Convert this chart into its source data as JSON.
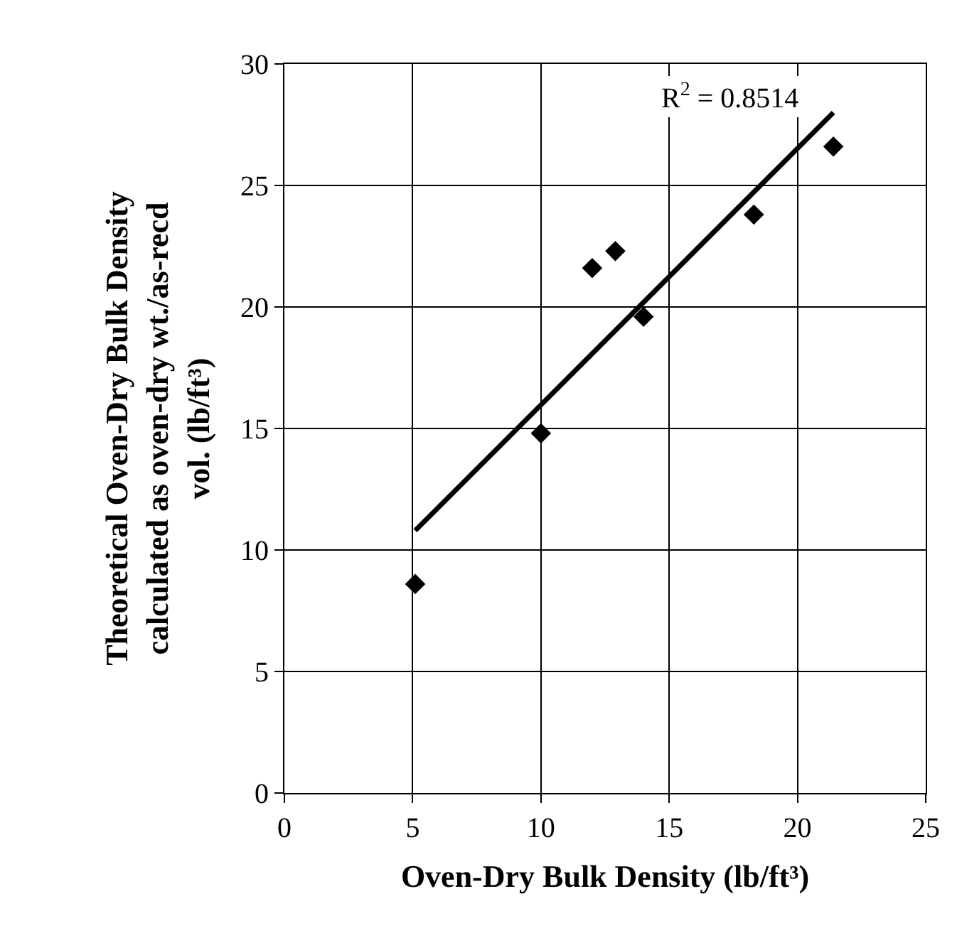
{
  "chart_data": {
    "type": "scatter",
    "xlabel": "Oven-Dry Bulk Density (lb/ft³)",
    "ylabel": "Theoretical Oven-Dry Bulk Density calculated as oven-dry wt./as-recd vol. (lb/ft³)",
    "series": [
      {
        "color": "#000000",
        "marker": "diamond",
        "x": [
          5.1,
          10.0,
          12.0,
          12.9,
          14.0,
          18.3,
          21.4
        ],
        "values": [
          8.6,
          14.8,
          21.6,
          22.3,
          19.6,
          23.8,
          26.6
        ]
      },
      {
        "type": "line",
        "color": "#000000",
        "marker": "none",
        "x": [
          5.1,
          21.4
        ],
        "values": [
          10.8,
          28.0
        ]
      }
    ],
    "annotations": [
      "R$^{2}$ = 0.8514"
    ],
    "xlim": [
      0,
      25
    ],
    "xticks": [
      0,
      5,
      10,
      15,
      20,
      25
    ],
    "ylim": [
      0,
      30
    ],
    "yticks": [
      0,
      5,
      10,
      15,
      20,
      25,
      30
    ],
    "grid": true,
    "legend": false
  }
}
